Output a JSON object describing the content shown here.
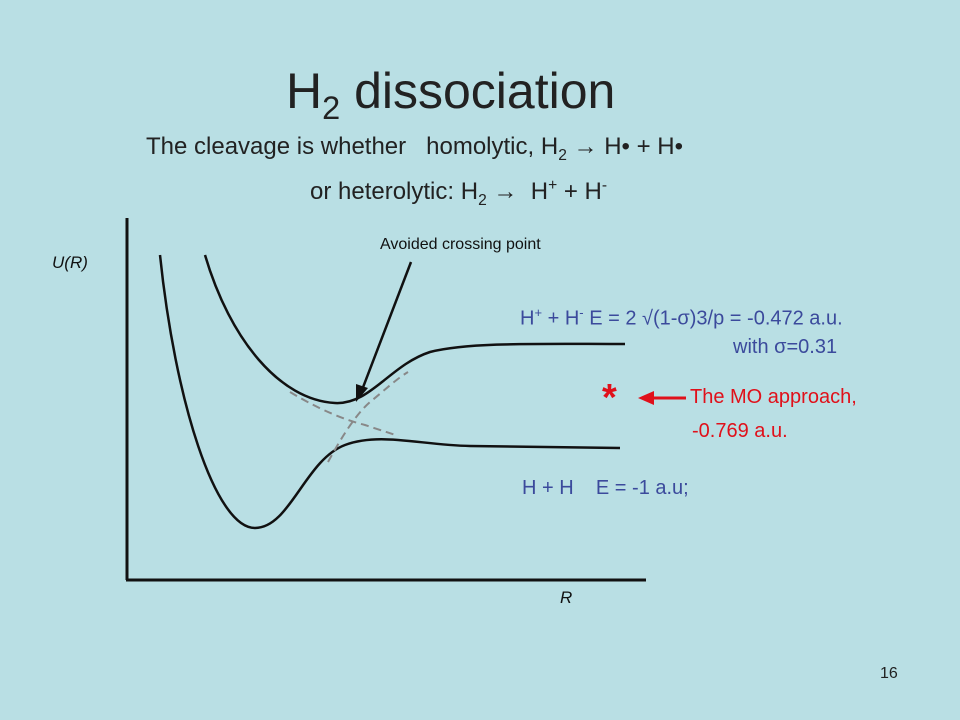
{
  "title": {
    "base": "H",
    "sub": "2",
    "rest": " dissociation"
  },
  "subtitle": {
    "line1": {
      "start": "The cleavage is whether   homolytic, H",
      "sub": "2",
      "end": " → H• + H•"
    },
    "line2": {
      "start": "or heterolytic: H",
      "sub": "2",
      "mid": " →  H",
      "sup1": "+",
      "plus": " + H",
      "sup2": "-"
    }
  },
  "diagram": {
    "y_axis_label": "U(R)",
    "x_axis_label": "R",
    "crossing_label": "Avoided crossing point"
  },
  "annotations": {
    "ionic": {
      "h": "H",
      "sup1": "+",
      "plus": " + H",
      "sup2": "-",
      "energy": " E = 2 √(1-σ)3/p = -0.472 a.u."
    },
    "sigma": "with σ=0.31",
    "star": "*",
    "mo_line1": "The MO approach,",
    "mo_line2": "-0.769 a.u.",
    "covalent": "H + H    E = -1 a.u;"
  },
  "page_number": "16"
}
